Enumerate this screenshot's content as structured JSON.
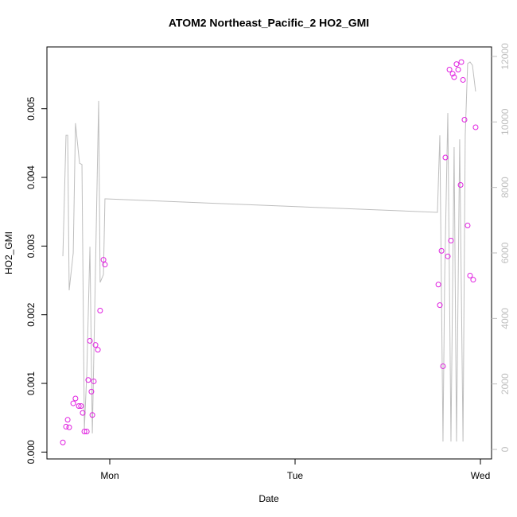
{
  "chart_data": {
    "type": "scatter",
    "title": "ATOM2 Northeast_Pacific_2 HO2_GMI",
    "x_label": "Date",
    "y_label": "HO2_GMI",
    "xlim": [
      0.661,
      3.06
    ],
    "xticks": [
      {
        "value": 1,
        "label": "Mon"
      },
      {
        "value": 2,
        "label": "Tue"
      },
      {
        "value": 3,
        "label": "Wed"
      }
    ],
    "ylim": [
      -0.0001,
      0.0059
    ],
    "yticks": [
      {
        "value": 0,
        "label": "0.000"
      },
      0.001,
      0.002,
      0.003,
      0.004,
      0.005
    ],
    "y2lim": [
      -290,
      12290
    ],
    "y2ticks": [
      0,
      2000,
      4000,
      6000,
      8000,
      10000,
      12000
    ],
    "series": [
      {
        "color": "#e020e0",
        "x": [
          0.747,
          0.764,
          0.773,
          0.781,
          0.803,
          0.815,
          0.833,
          0.845,
          0.854,
          0.863,
          0.876,
          0.884,
          0.893,
          0.901,
          0.906,
          0.914,
          0.923,
          0.936,
          0.948,
          0.966,
          0.974,
          2.773,
          2.781,
          2.79,
          2.798,
          2.811,
          2.824,
          2.833,
          2.841,
          2.85,
          2.858,
          2.871,
          2.88,
          2.893,
          2.897,
          2.906,
          2.914,
          2.931,
          2.944,
          2.961,
          2.974
        ],
        "values": [
          0.00014,
          0.00037,
          0.00047,
          0.00036,
          0.00071,
          0.00078,
          0.00067,
          0.00067,
          0.00057,
          0.0003,
          0.0003,
          0.00105,
          0.00162,
          0.00088,
          0.00054,
          0.00103,
          0.00156,
          0.00149,
          0.00206,
          0.0028,
          0.00273,
          0.00244,
          0.00214,
          0.00293,
          0.00125,
          0.00429,
          0.00285,
          0.00557,
          0.00308,
          0.00551,
          0.00546,
          0.00565,
          0.00557,
          0.00389,
          0.00568,
          0.00542,
          0.00484,
          0.0033,
          0.00257,
          0.00251,
          0.00473
        ]
      },
      {
        "type": "line",
        "axis": "y2",
        "color": "#bebebe",
        "x": [
          0.747,
          0.764,
          0.773,
          0.781,
          0.803,
          0.815,
          0.837,
          0.85,
          0.863,
          0.876,
          0.893,
          0.906,
          0.918,
          0.94,
          0.948,
          0.966,
          0.974,
          0.979,
          2.768,
          2.781,
          2.798,
          2.807,
          2.824,
          2.841,
          2.858,
          2.871,
          2.888,
          2.906,
          2.918,
          2.931,
          2.944,
          2.957,
          2.974
        ],
        "values": [
          5900,
          9590,
          9590,
          4860,
          6000,
          9960,
          8740,
          8700,
          610,
          2310,
          6190,
          490,
          4010,
          10640,
          5100,
          5340,
          7650,
          7650,
          7240,
          9590,
          240,
          5220,
          10270,
          240,
          9230,
          240,
          9470,
          240,
          9590,
          11780,
          11830,
          11730,
          10930
        ]
      }
    ]
  }
}
